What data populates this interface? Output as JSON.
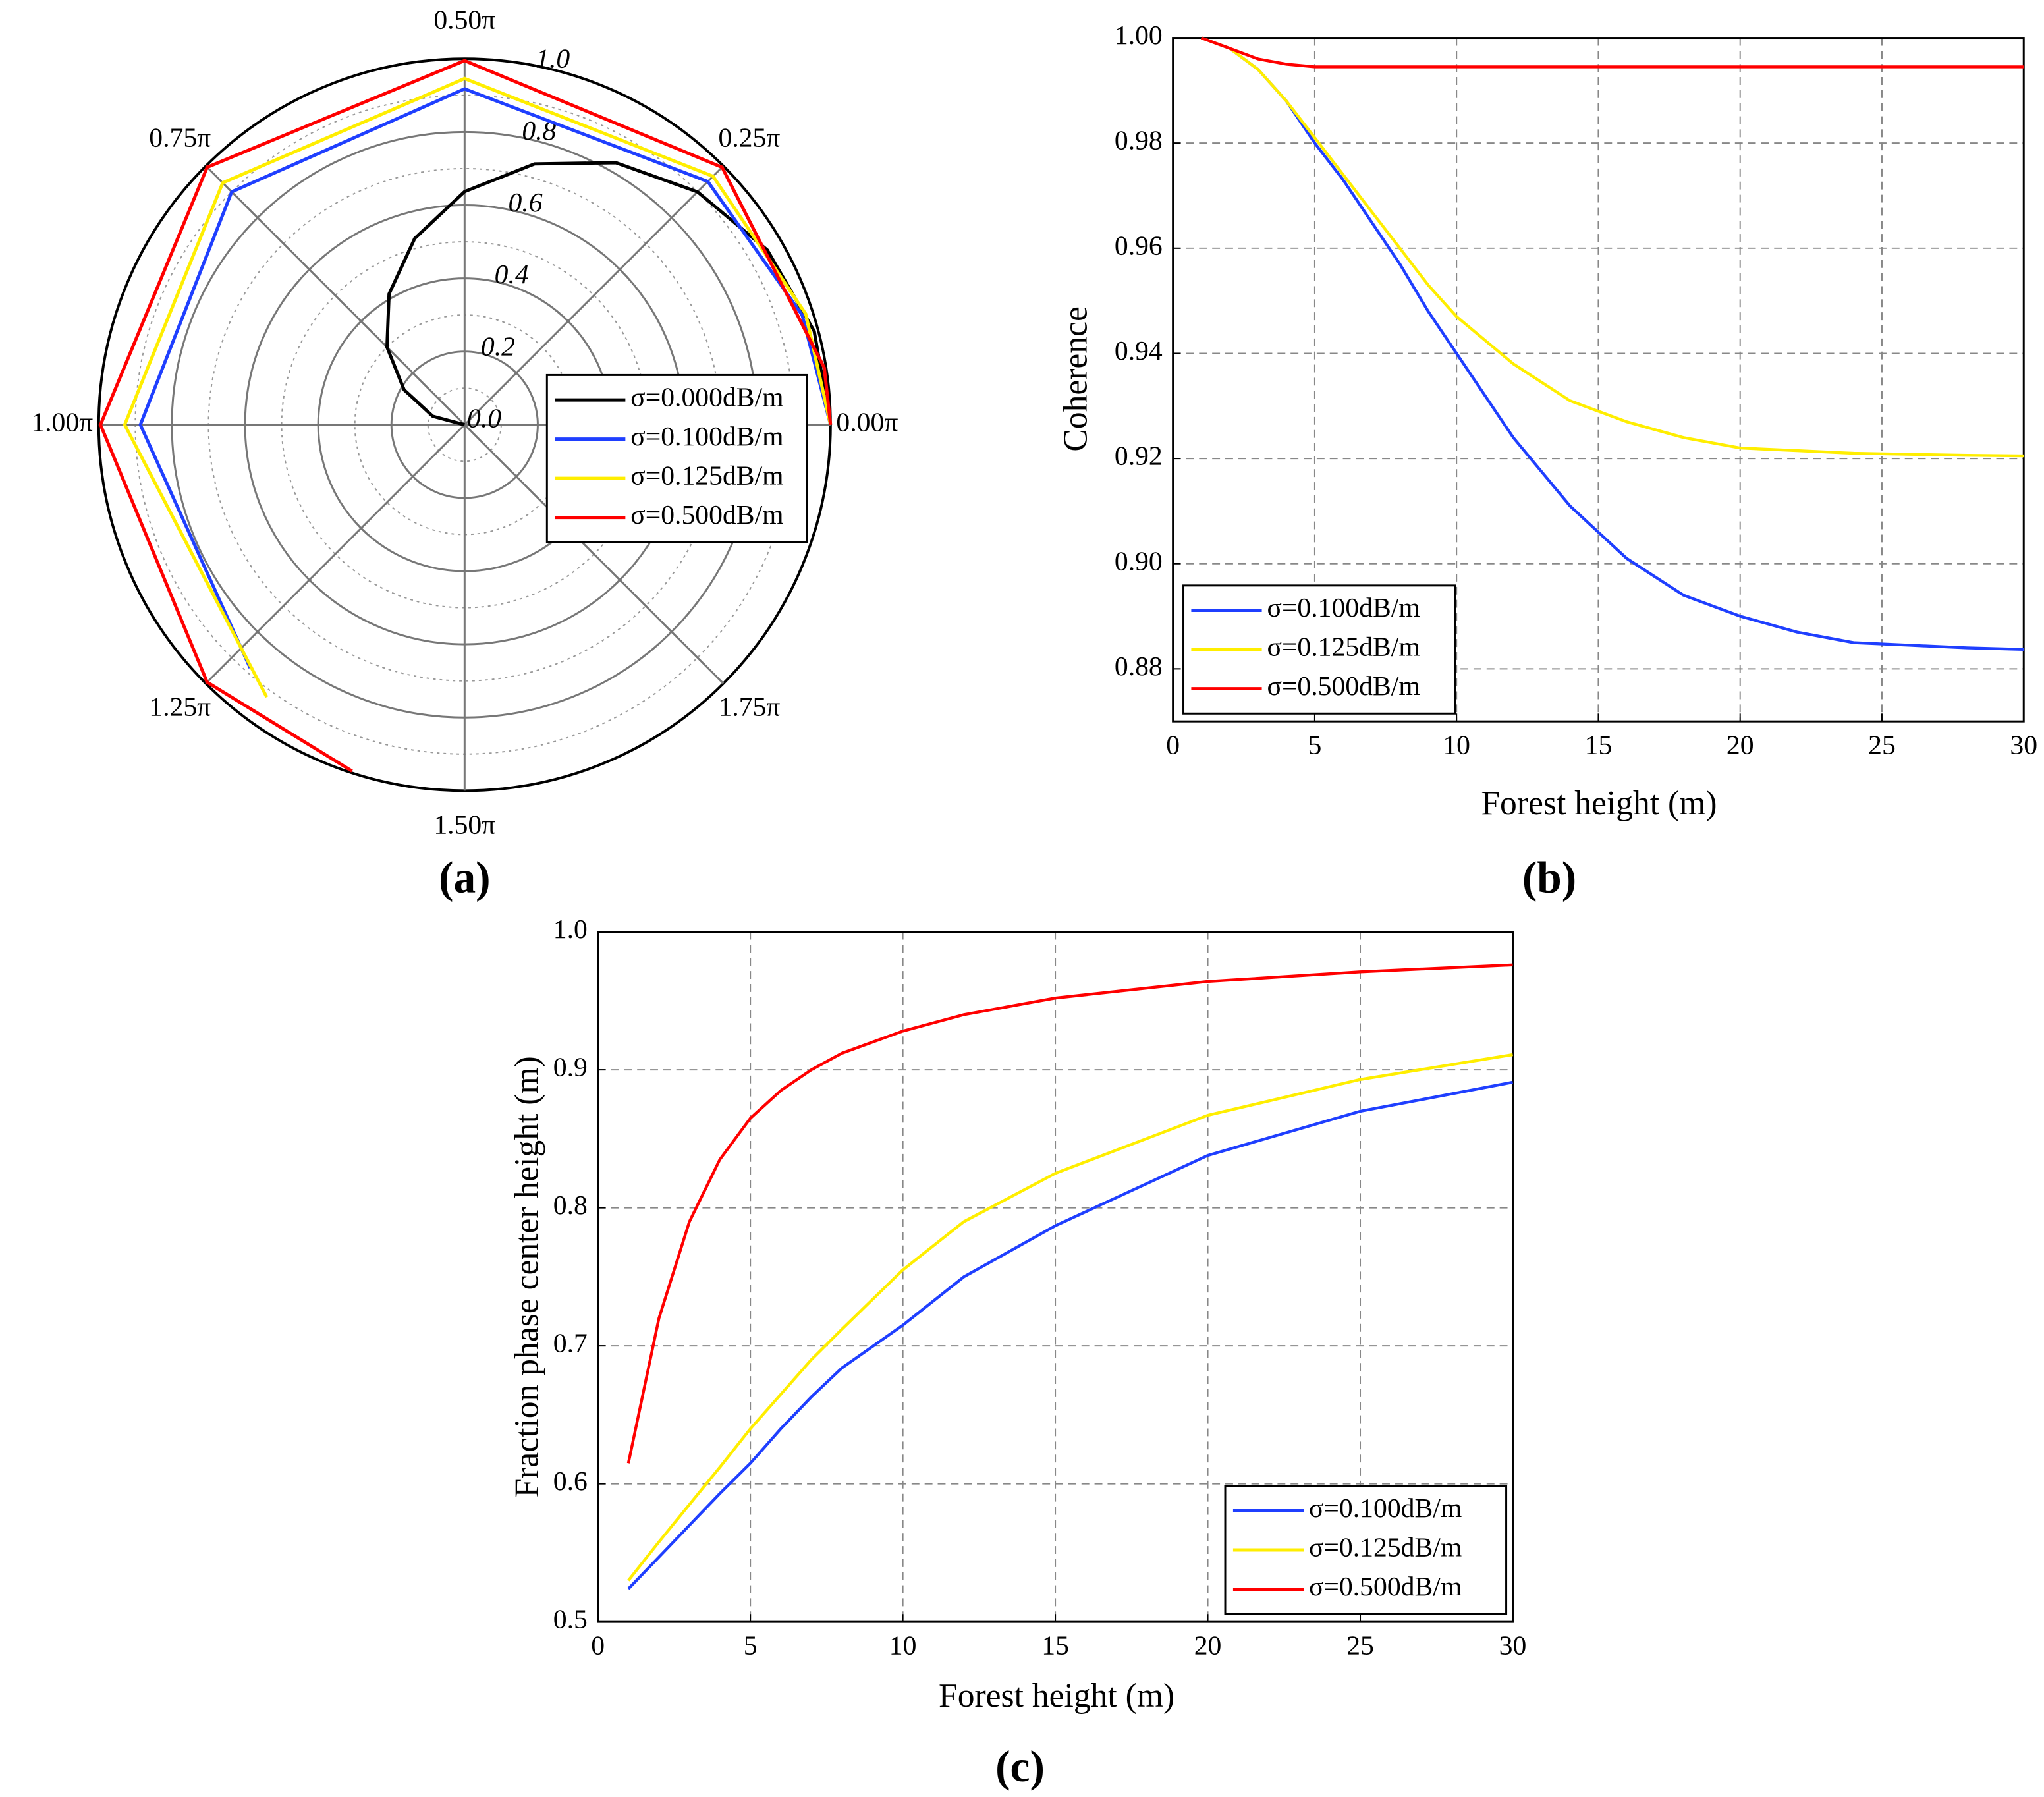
{
  "chart_data": [
    {
      "type": "polar",
      "panel_label": "(a)",
      "theta_ticks": [
        {
          "value": 0,
          "label": "0.00π"
        },
        {
          "value": 0.25,
          "label": "0.25π"
        },
        {
          "value": 0.5,
          "label": "0.50π"
        },
        {
          "value": 0.75,
          "label": "0.75π"
        },
        {
          "value": 1,
          "label": "1.00π"
        },
        {
          "value": 1.25,
          "label": "1.25π"
        },
        {
          "value": 1.5,
          "label": "1.50π"
        },
        {
          "value": 1.75,
          "label": "1.75π"
        }
      ],
      "rlim": [
        0,
        1
      ],
      "rticks": [
        {
          "value": 0,
          "label": "0.0"
        },
        0.2,
        0.4,
        0.6,
        0.8,
        {
          "value": 1,
          "label": "1.0"
        }
      ],
      "series": [
        {
          "name": "σ=0.000dB/m",
          "color": "#000000",
          "theta": [
            0,
            0.0833,
            0.1667,
            0.25,
            0.3333,
            0.4167,
            0.5,
            0.5833,
            0.6667,
            0.75,
            0.8333,
            0.9167,
            1
          ],
          "r": [
            1,
            0.989,
            0.955,
            0.9,
            0.827,
            0.738,
            0.637,
            0.527,
            0.413,
            0.3,
            0.191,
            0.09,
            0
          ]
        },
        {
          "name": "σ=0.100dB/m",
          "color": "#1f3fff",
          "theta": [
            0,
            0.1,
            0.25,
            0.5,
            0.75,
            1,
            1.27
          ],
          "r": [
            1,
            0.97,
            0.94,
            0.918,
            0.9,
            0.886,
            0.886
          ]
        },
        {
          "name": "σ=0.125dB/m",
          "color": "#ffee00",
          "theta": [
            0,
            0.1,
            0.25,
            0.5,
            0.75,
            1,
            1.3
          ],
          "r": [
            1,
            0.98,
            0.96,
            0.946,
            0.935,
            0.929,
            0.92
          ]
        },
        {
          "name": "σ=0.500dB/m",
          "color": "#ff0000",
          "theta": [
            0,
            0.05,
            0.25,
            0.5,
            0.75,
            1,
            1.25,
            1.4
          ],
          "r": [
            1,
            0.995,
            0.995,
            0.995,
            0.995,
            0.995,
            0.995,
            0.995
          ]
        }
      ]
    },
    {
      "type": "line",
      "panel_label": "(b)",
      "x_label": "Forest height (m)",
      "y_label": "Coherence",
      "x": [
        1,
        2,
        3,
        4,
        5,
        6,
        7,
        8,
        9,
        10,
        12,
        14,
        16,
        18,
        20,
        22,
        24,
        26,
        28,
        30
      ],
      "xlim": [
        0,
        30
      ],
      "xticks": [
        0,
        5,
        10,
        15,
        20,
        25,
        30
      ],
      "ylim": [
        0.87,
        1.0
      ],
      "yticks": [
        0.88,
        {
          "value": 0.9,
          "label": "0.90"
        },
        0.92,
        0.94,
        0.96,
        0.98,
        {
          "value": 1,
          "label": "1.00"
        }
      ],
      "grid": true,
      "legend": "lower left",
      "series": [
        {
          "name": "σ=0.100dB/m",
          "color": "#1f3fff",
          "values": [
            1.0,
            0.998,
            0.994,
            0.988,
            0.98,
            0.973,
            0.965,
            0.957,
            0.948,
            0.94,
            0.924,
            0.911,
            0.901,
            0.894,
            0.89,
            0.887,
            0.885,
            0.8845,
            0.884,
            0.8837
          ]
        },
        {
          "name": "σ=0.125dB/m",
          "color": "#ffee00",
          "values": [
            1.0,
            0.998,
            0.994,
            0.988,
            0.981,
            0.974,
            0.967,
            0.96,
            0.953,
            0.947,
            0.938,
            0.931,
            0.927,
            0.924,
            0.922,
            0.9215,
            0.921,
            0.9208,
            0.9206,
            0.9205
          ]
        },
        {
          "name": "σ=0.500dB/m",
          "color": "#ff0000",
          "values": [
            1.0,
            0.998,
            0.996,
            0.995,
            0.9945,
            0.9945,
            0.9945,
            0.9945,
            0.9945,
            0.9945,
            0.9945,
            0.9945,
            0.9945,
            0.9945,
            0.9945,
            0.9945,
            0.9945,
            0.9945,
            0.9945,
            0.9945
          ]
        }
      ]
    },
    {
      "type": "line",
      "panel_label": "(c)",
      "x_label": "Forest height (m)",
      "y_label": "Fraction phase center height (m)",
      "x": [
        1,
        2,
        3,
        4,
        5,
        6,
        7,
        8,
        10,
        12,
        15,
        20,
        25,
        30
      ],
      "xlim": [
        0,
        30
      ],
      "xticks": [
        0,
        5,
        10,
        15,
        20,
        25,
        30
      ],
      "ylim": [
        0.5,
        1.0
      ],
      "yticks": [
        0.5,
        0.6,
        0.7,
        0.8,
        0.9,
        {
          "value": 1,
          "label": "1.0"
        }
      ],
      "grid": true,
      "legend": "lower right",
      "series": [
        {
          "name": "σ=0.100dB/m",
          "color": "#1f3fff",
          "values": [
            0.524,
            0.547,
            0.57,
            0.593,
            0.615,
            0.64,
            0.663,
            0.684,
            0.715,
            0.75,
            0.787,
            0.838,
            0.87,
            0.891
          ]
        },
        {
          "name": "σ=0.125dB/m",
          "color": "#ffee00",
          "values": [
            0.53,
            0.558,
            0.585,
            0.612,
            0.64,
            0.665,
            0.69,
            0.712,
            0.755,
            0.79,
            0.825,
            0.867,
            0.893,
            0.911
          ]
        },
        {
          "name": "σ=0.500dB/m",
          "color": "#ff0000",
          "values": [
            0.615,
            0.72,
            0.79,
            0.835,
            0.865,
            0.885,
            0.9,
            0.912,
            0.928,
            0.94,
            0.952,
            0.964,
            0.971,
            0.976
          ]
        }
      ]
    }
  ]
}
